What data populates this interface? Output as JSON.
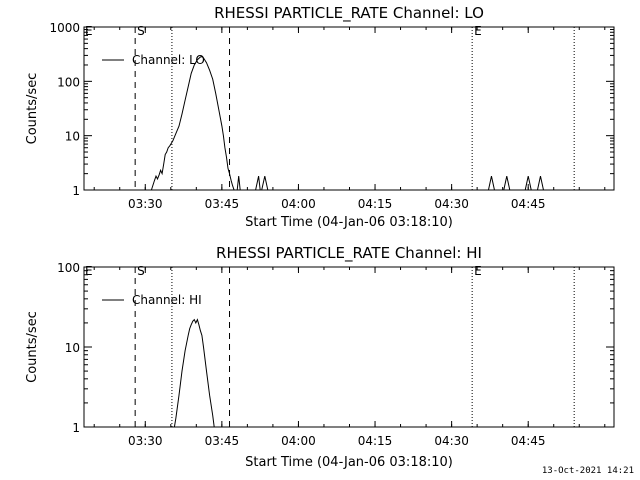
{
  "chart_data": [
    {
      "type": "line",
      "title": "RHESSI PARTICLE_RATE Channel: LO",
      "xlabel": "Start Time (04-Jan-06 03:18:10)",
      "ylabel": "Counts/sec",
      "xlim": [
        3.3,
        5.03
      ],
      "ylim": [
        1,
        1000
      ],
      "yscale": "log",
      "xtick_labels": [
        "03:30",
        "03:45",
        "04:00",
        "04:15",
        "04:30",
        "04:45"
      ],
      "xtick_values": [
        3.5,
        3.75,
        4.0,
        4.25,
        4.5,
        4.75
      ],
      "ytick_labels": [
        "1",
        "10",
        "100",
        "1000"
      ],
      "ytick_values": [
        1,
        10,
        100,
        1000
      ],
      "legend": {
        "label": "Channel: LO",
        "position": "top-left"
      },
      "markers": [
        {
          "label": "E",
          "x": 3.3
        },
        {
          "label": "S",
          "x": 3.47
        },
        {
          "label": "E",
          "x": 4.57
        }
      ],
      "vlines": [
        {
          "x": 3.467,
          "style": "dashed"
        },
        {
          "x": 3.587,
          "style": "dotted"
        },
        {
          "x": 3.775,
          "style": "dashed"
        },
        {
          "x": 4.567,
          "style": "dotted"
        },
        {
          "x": 4.9,
          "style": "dotted"
        }
      ],
      "series": [
        {
          "name": "Channel: LO",
          "x": [
            3.52,
            3.53,
            3.535,
            3.54,
            3.545,
            3.55,
            3.555,
            3.56,
            3.565,
            3.57,
            3.575,
            3.58,
            3.59,
            3.6,
            3.61,
            3.62,
            3.63,
            3.64,
            3.65,
            3.66,
            3.67,
            3.68,
            3.685,
            3.69,
            3.7,
            3.71,
            3.72,
            3.73,
            3.74,
            3.75,
            3.755,
            3.76,
            3.765,
            3.77,
            3.775,
            3.78,
            3.785,
            3.79,
            3.8,
            3.805,
            3.81,
            3.815,
            3.82,
            3.83,
            3.84,
            3.845,
            3.85,
            3.86,
            3.87,
            3.875,
            3.88,
            3.89,
            3.9,
            3.905,
            3.91,
            3.92
          ],
          "y": [
            1,
            1.5,
            1.8,
            1.6,
            1.9,
            2.3,
            2.0,
            3.0,
            4.5,
            5.0,
            6.0,
            6.5,
            8,
            11,
            15,
            25,
            45,
            80,
            140,
            200,
            250,
            280,
            285,
            270,
            220,
            160,
            110,
            60,
            30,
            15,
            10,
            6,
            4,
            2.5,
            2,
            1.5,
            1.2,
            1,
            1,
            1.8,
            1,
            1,
            1,
            1,
            1,
            1,
            1,
            1,
            1.8,
            1,
            1,
            1.8,
            1,
            1,
            1,
            1
          ]
        }
      ],
      "extra_spikes_x": [
        4.63,
        4.68,
        4.75,
        4.79
      ]
    },
    {
      "type": "line",
      "title": "RHESSI PARTICLE_RATE Channel: HI",
      "xlabel": "Start Time (04-Jan-06 03:18:10)",
      "ylabel": "Counts/sec",
      "xlim": [
        3.3,
        5.03
      ],
      "ylim": [
        1,
        100
      ],
      "yscale": "log",
      "xtick_labels": [
        "03:30",
        "03:45",
        "04:00",
        "04:15",
        "04:30",
        "04:45"
      ],
      "xtick_values": [
        3.5,
        3.75,
        4.0,
        4.25,
        4.5,
        4.75
      ],
      "ytick_labels": [
        "1",
        "10",
        "100"
      ],
      "ytick_values": [
        1,
        10,
        100
      ],
      "legend": {
        "label": "Channel: HI",
        "position": "top-left"
      },
      "markers": [
        {
          "label": "E",
          "x": 3.3
        },
        {
          "label": "S",
          "x": 3.47
        },
        {
          "label": "E",
          "x": 4.57
        }
      ],
      "vlines": [
        {
          "x": 3.467,
          "style": "dashed"
        },
        {
          "x": 3.587,
          "style": "dotted"
        },
        {
          "x": 3.775,
          "style": "dashed"
        },
        {
          "x": 4.567,
          "style": "dotted"
        },
        {
          "x": 4.9,
          "style": "dotted"
        }
      ],
      "series": [
        {
          "name": "Channel: HI",
          "x": [
            3.595,
            3.6,
            3.61,
            3.62,
            3.63,
            3.64,
            3.645,
            3.65,
            3.655,
            3.66,
            3.665,
            3.67,
            3.675,
            3.68,
            3.685,
            3.69,
            3.7,
            3.71,
            3.72,
            3.725
          ],
          "y": [
            1,
            1.3,
            2.5,
            5,
            9,
            14,
            17,
            19,
            21,
            22,
            20,
            22,
            19,
            16,
            14,
            10,
            5,
            2.5,
            1.4,
            1
          ]
        }
      ]
    }
  ],
  "footer": {
    "timestamp": "13-Oct-2021 14:21"
  }
}
